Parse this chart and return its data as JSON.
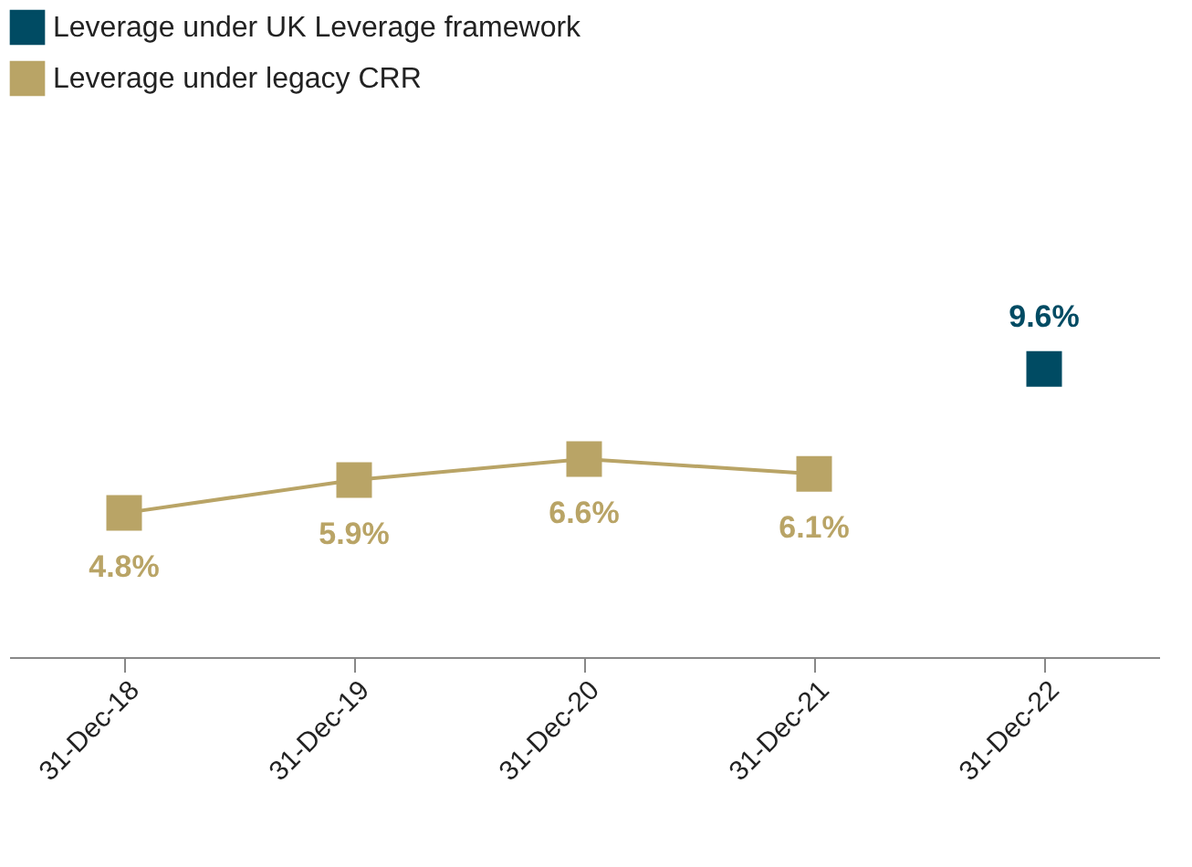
{
  "chart_data": {
    "type": "line",
    "categories": [
      "31-Dec-18",
      "31-Dec-19",
      "31-Dec-20",
      "31-Dec-21",
      "31-Dec-22"
    ],
    "series": [
      {
        "name": "Leverage under UK Leverage framework",
        "color": "#004b63",
        "values": [
          null,
          null,
          null,
          null,
          9.6
        ],
        "value_labels": [
          null,
          null,
          null,
          null,
          "9.6%"
        ]
      },
      {
        "name": "Leverage under legacy CRR",
        "color": "#b9a466",
        "values": [
          4.8,
          5.9,
          6.6,
          6.1,
          null
        ],
        "value_labels": [
          "4.8%",
          "5.9%",
          "6.6%",
          "6.1%",
          null
        ]
      }
    ],
    "marker": "square",
    "line_style": "solid",
    "legend": "top",
    "grid": false
  }
}
